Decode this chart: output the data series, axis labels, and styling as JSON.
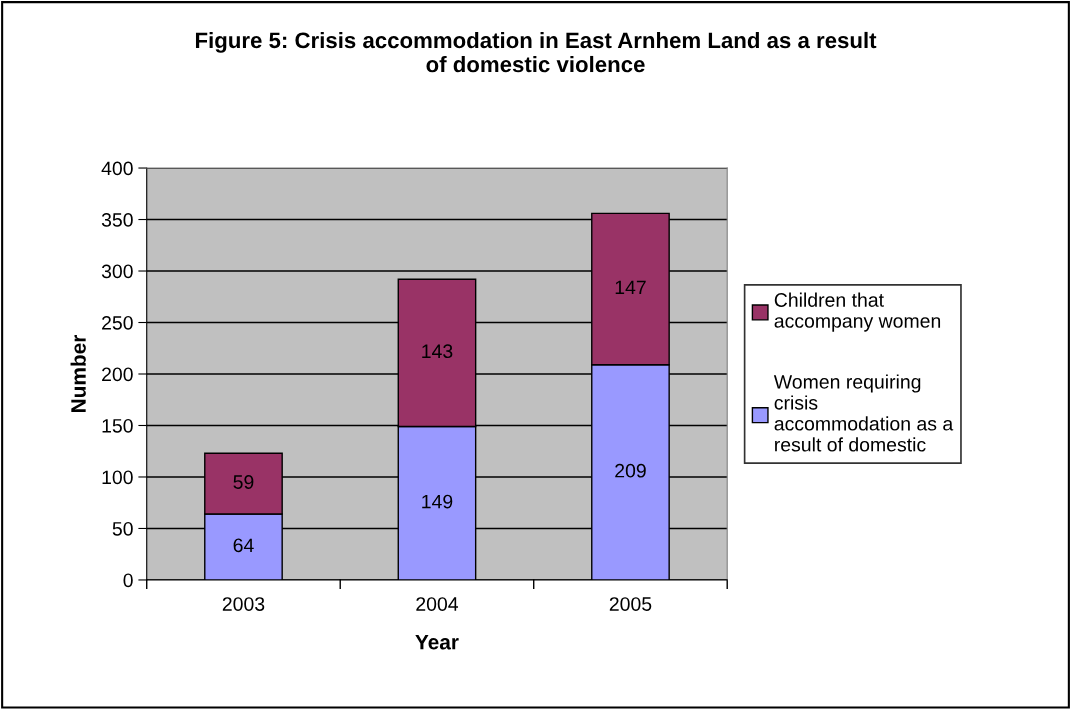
{
  "chart_data": {
    "type": "bar",
    "title": "Figure 5: Crisis accommodation in East Arnhem Land as a result\nof domestic violence",
    "xlabel": "Year",
    "ylabel": "Number",
    "categories": [
      "2003",
      "2004",
      "2005"
    ],
    "stacked": true,
    "series": [
      {
        "name": "Women requiring\ncrisis\naccommodation as a\nresult of domestic",
        "color": "#9999ff",
        "values": [
          64,
          149,
          209
        ]
      },
      {
        "name": "Children that\naccompany women",
        "color": "#993366",
        "values": [
          59,
          143,
          147
        ]
      }
    ],
    "ylim": [
      0,
      400
    ],
    "yticks": [
      0,
      50,
      100,
      150,
      200,
      250,
      300,
      350,
      400
    ],
    "grid": "y",
    "legend": "right",
    "data_labels": true
  }
}
